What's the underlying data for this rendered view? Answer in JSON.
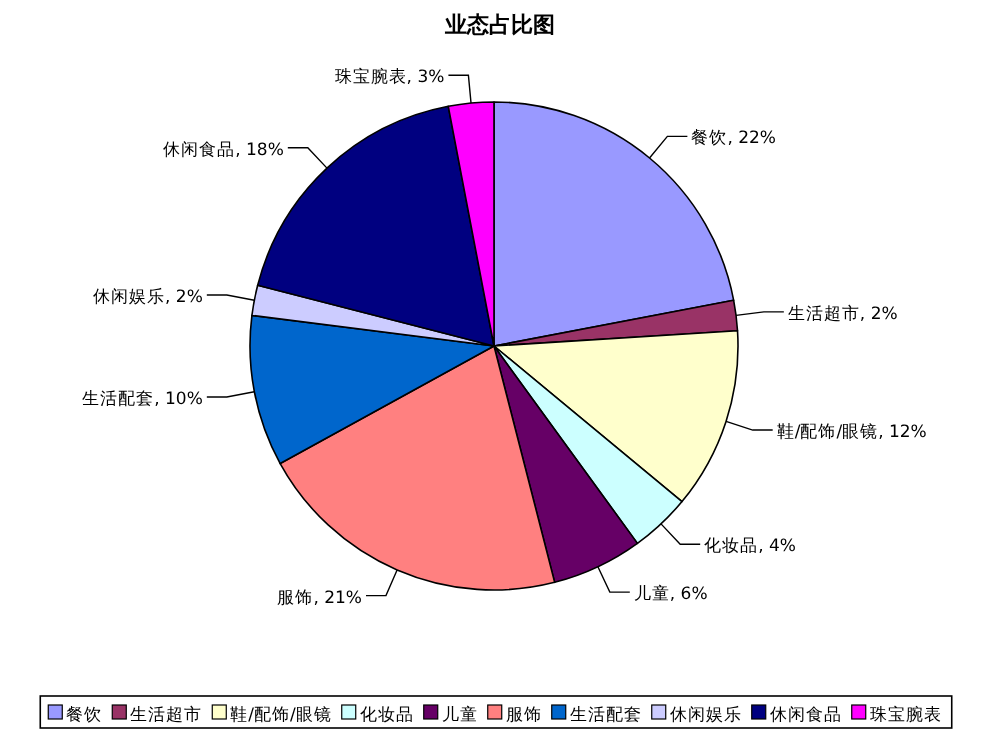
{
  "chart_data": {
    "type": "pie",
    "title": "业态占比图",
    "categories": [
      "餐饮",
      "生活超市",
      "鞋/配饰/眼镜",
      "化妆品",
      "儿童",
      "服饰",
      "生活配套",
      "休闲娱乐",
      "休闲食品",
      "珠宝腕表"
    ],
    "values": [
      22,
      2,
      12,
      4,
      6,
      21,
      10,
      2,
      18,
      3
    ],
    "value_labels": [
      ", 22%",
      ", 2%",
      ", 12%",
      ", 4%",
      ", 6%",
      ", 21%",
      ", 10%",
      ", 2%",
      ", 18%",
      ", 3%"
    ],
    "colors": [
      "#9999ff",
      "#993366",
      "#ffffcc",
      "#ccffff",
      "#660066",
      "#ff8080",
      "#0066cc",
      "#ccccff",
      "#000080",
      "#ff00ff"
    ],
    "legend": "bottom"
  }
}
